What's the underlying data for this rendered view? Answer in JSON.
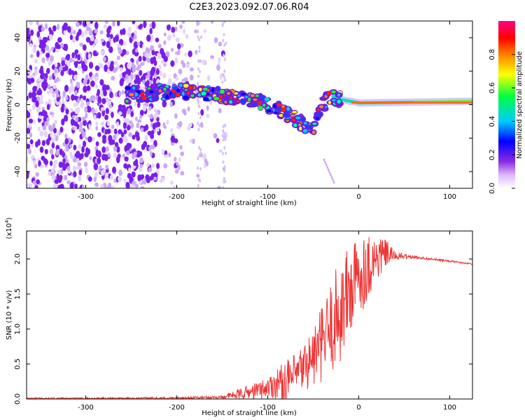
{
  "title": "C2E3.2023.092.07.06.R04",
  "chart_data": [
    {
      "type": "heatmap",
      "name": "spectrogram",
      "xlabel": "Height of straight line (km)",
      "ylabel": "Frequency (Hz)",
      "xlim": [
        -365,
        125
      ],
      "ylim": [
        -50,
        50
      ],
      "xticks": [
        -300,
        -200,
        -100,
        0,
        100
      ],
      "xtick_labels": [
        "-300",
        "-200",
        "-100",
        "0",
        "100"
      ],
      "yticks": [
        -40,
        -20,
        0,
        20,
        40
      ],
      "ytick_labels": [
        "-40",
        "-20",
        "0",
        "20",
        "40"
      ],
      "colorbar": {
        "label": "Normalized spectral amplitude",
        "range": [
          0,
          1
        ],
        "ticks": [
          0.0,
          0.2,
          0.4,
          0.6,
          0.8
        ],
        "tick_labels": [
          "0.0",
          "0.2",
          "0.4",
          "0.6",
          "0.8"
        ],
        "colors": [
          "#ffffff",
          "#e6ccff",
          "#8a2be2",
          "#0000ff",
          "#00ffff",
          "#00ff00",
          "#ffff00",
          "#ff8000",
          "#ff0000",
          "#ff00aa"
        ]
      },
      "features": {
        "noise_region_x": [
          -365,
          -145
        ],
        "signal_band": [
          [
            -250,
            6
          ],
          [
            -200,
            8
          ],
          [
            -160,
            6
          ],
          [
            -130,
            4
          ],
          [
            -100,
            0
          ],
          [
            -80,
            -5
          ],
          [
            -60,
            -12
          ],
          [
            -50,
            -14
          ],
          [
            -40,
            0
          ],
          [
            -30,
            5
          ],
          [
            -20,
            3
          ],
          [
            0,
            1
          ],
          [
            60,
            1.5
          ],
          [
            125,
            2
          ]
        ]
      }
    },
    {
      "type": "line",
      "name": "snr",
      "xlabel": "Height of straight line (km)",
      "ylabel": "SNR (10 * v/v)",
      "yscale_label": "(x10",
      "yscale_exp": "4",
      "yscale_close": ")",
      "xlim": [
        -365,
        125
      ],
      "ylim": [
        0,
        2.4
      ],
      "xticks": [
        -300,
        -200,
        -100,
        0,
        100
      ],
      "xtick_labels": [
        "-300",
        "-200",
        "-100",
        "0",
        "100"
      ],
      "yticks": [
        0.0,
        0.5,
        1.0,
        1.5,
        2.0
      ],
      "ytick_labels": [
        "0.0",
        "0.5",
        "1.0",
        "1.5",
        "2.0"
      ],
      "color": "#ee3333",
      "envelope": {
        "x": [
          -365,
          -300,
          -200,
          -150,
          -130,
          -110,
          -100,
          -90,
          -80,
          -70,
          -60,
          -50,
          -40,
          -30,
          -20,
          -10,
          0,
          10,
          20,
          30,
          40,
          60,
          80,
          100,
          125
        ],
        "y": [
          0.01,
          0.01,
          0.015,
          0.03,
          0.08,
          0.14,
          0.18,
          0.25,
          0.28,
          0.35,
          0.5,
          0.65,
          0.85,
          1.1,
          1.35,
          1.6,
          1.8,
          1.95,
          2.05,
          2.1,
          2.05,
          2.03,
          2.0,
          1.97,
          1.93
        ]
      },
      "noise_amplitude": {
        "x": [
          -365,
          -150,
          -130,
          -100,
          -80,
          -60,
          -40,
          -20,
          0,
          20,
          30,
          40,
          60,
          125
        ],
        "a": [
          0.01,
          0.02,
          0.08,
          0.15,
          0.3,
          0.35,
          0.55,
          0.8,
          0.6,
          0.35,
          0.2,
          0.06,
          0.02,
          0.01
        ]
      }
    }
  ]
}
